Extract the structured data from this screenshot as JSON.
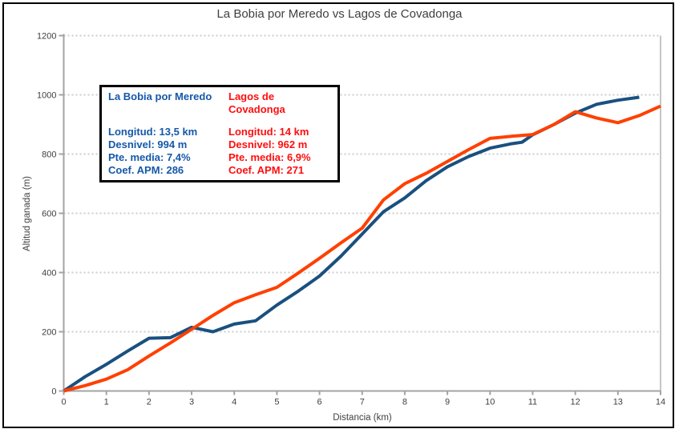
{
  "title": "La Bobia por Meredo vs Lagos de Covadonga",
  "colors": {
    "series1": "#19507F",
    "series2": "#FF4000",
    "legend_blue_text": "#1558A8",
    "legend_red_text": "#FF0E0E",
    "grid": "#CCCCCC",
    "axis": "#A3A3A3",
    "plot_right_border": "#C6C6C6",
    "text": "#404040",
    "legend_border": "#000000"
  },
  "legend": {
    "left": {
      "name": "La Bobia por Meredo",
      "stats": [
        "Longitud: 13,5 km",
        "Desnivel: 994 m",
        "Pte. media: 7,4%",
        "Coef. APM: 286"
      ]
    },
    "right": {
      "name": "Lagos de Covadonga",
      "stats": [
        "Longitud: 14 km",
        "Desnivel: 962 m",
        "Pte. media: 6,9%",
        "Coef. APM: 271"
      ]
    }
  },
  "chart_data": {
    "type": "line",
    "title": "La Bobia por Meredo vs Lagos de Covadonga",
    "xlabel": "Distancia (km)",
    "ylabel": "Altitud ganada (m)",
    "xlim": [
      0,
      14
    ],
    "ylim": [
      0,
      1200
    ],
    "xticks": [
      0,
      1,
      2,
      3,
      4,
      5,
      6,
      7,
      8,
      9,
      10,
      11,
      12,
      13,
      14
    ],
    "yticks": [
      0,
      200,
      400,
      600,
      800,
      1000,
      1200
    ],
    "grid": "horizontal dotted",
    "legend_position": "upper-left box with route stats",
    "series": [
      {
        "name": "La Bobia por Meredo",
        "color": "#19507F",
        "points": [
          [
            0,
            0
          ],
          [
            0.5,
            48
          ],
          [
            1,
            90
          ],
          [
            1.5,
            135
          ],
          [
            2,
            178
          ],
          [
            2.5,
            180
          ],
          [
            3,
            215
          ],
          [
            3.5,
            200
          ],
          [
            4,
            226
          ],
          [
            4.5,
            237
          ],
          [
            5,
            290
          ],
          [
            5.5,
            337
          ],
          [
            6,
            388
          ],
          [
            6.5,
            455
          ],
          [
            7,
            530
          ],
          [
            7.5,
            605
          ],
          [
            8,
            652
          ],
          [
            8.5,
            710
          ],
          [
            9,
            757
          ],
          [
            9.5,
            792
          ],
          [
            10,
            820
          ],
          [
            10.5,
            835
          ],
          [
            10.75,
            840
          ],
          [
            11,
            865
          ],
          [
            11.5,
            900
          ],
          [
            12,
            938
          ],
          [
            12.5,
            968
          ],
          [
            13,
            982
          ],
          [
            13.5,
            992
          ]
        ]
      },
      {
        "name": "Lagos de Covadonga",
        "color": "#FF4000",
        "points": [
          [
            0,
            0
          ],
          [
            0.5,
            18
          ],
          [
            1,
            40
          ],
          [
            1.5,
            72
          ],
          [
            2,
            118
          ],
          [
            2.5,
            162
          ],
          [
            3,
            208
          ],
          [
            3.5,
            255
          ],
          [
            4,
            298
          ],
          [
            4.5,
            325
          ],
          [
            5,
            350
          ],
          [
            5.5,
            398
          ],
          [
            6,
            448
          ],
          [
            6.5,
            500
          ],
          [
            7,
            550
          ],
          [
            7.5,
            645
          ],
          [
            8,
            700
          ],
          [
            8.5,
            735
          ],
          [
            9,
            775
          ],
          [
            9.5,
            815
          ],
          [
            10,
            853
          ],
          [
            10.5,
            860
          ],
          [
            11,
            866
          ],
          [
            11.5,
            900
          ],
          [
            12,
            943
          ],
          [
            12.5,
            922
          ],
          [
            13,
            906
          ],
          [
            13.5,
            930
          ],
          [
            14,
            962
          ]
        ]
      }
    ]
  }
}
